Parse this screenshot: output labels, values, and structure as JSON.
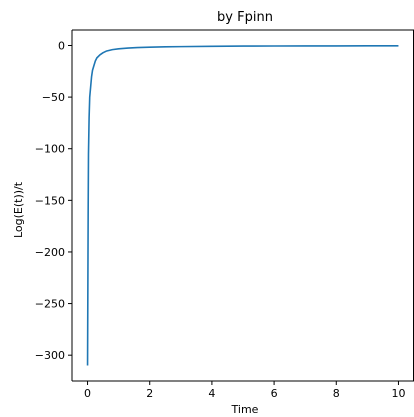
{
  "chart_data": {
    "type": "line",
    "title": "by Fpinn",
    "xlabel": "Time",
    "ylabel": "Log(E(t))/t",
    "xlim": [
      -0.5,
      10.5
    ],
    "ylim": [
      -325,
      15
    ],
    "xticks": [
      0,
      2,
      4,
      6,
      8,
      10
    ],
    "yticks": [
      0,
      -50,
      -100,
      -150,
      -200,
      -250,
      -300
    ],
    "xtick_labels": [
      "0",
      "2",
      "4",
      "6",
      "8",
      "10"
    ],
    "ytick_labels": [
      "0",
      "−50",
      "−100",
      "−150",
      "−200",
      "−250",
      "−300"
    ],
    "grid": false,
    "series": [
      {
        "color": "#1f77b4",
        "x": [
          0.0,
          0.02,
          0.03,
          0.05,
          0.07,
          0.1,
          0.13,
          0.16,
          0.2,
          0.25,
          0.3,
          0.4,
          0.5,
          0.6,
          0.8,
          1.0,
          1.3,
          1.6,
          2.0,
          2.5,
          3.0,
          4.0,
          5.0,
          6.0,
          7.0,
          8.0,
          9.0,
          10.0
        ],
        "y": [
          -310,
          -160,
          -105,
          -70,
          -50,
          -40,
          -30,
          -24,
          -20,
          -15,
          -12,
          -9,
          -7,
          -5.5,
          -4,
          -3.2,
          -2.5,
          -2,
          -1.6,
          -1.3,
          -1.1,
          -0.8,
          -0.6,
          -0.5,
          -0.45,
          -0.4,
          -0.35,
          -0.3
        ]
      }
    ]
  }
}
